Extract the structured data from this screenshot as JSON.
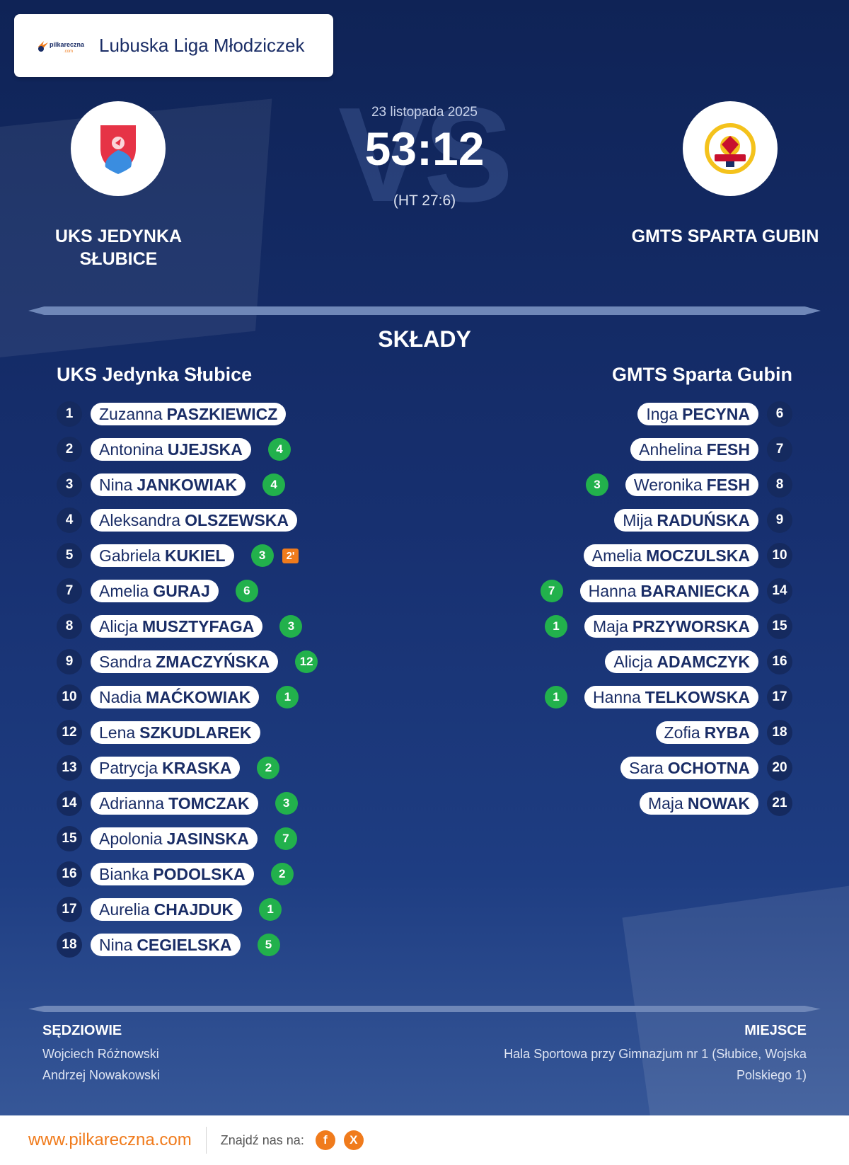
{
  "league": {
    "brand": "pilkareczna.com",
    "name": "Lubuska Liga Młodziczek"
  },
  "match": {
    "date": "23 listopada 2025",
    "score": "53:12",
    "halftime": "(HT 27:6)",
    "vs_watermark": "VS"
  },
  "home": {
    "name": "UKS JEDYNKA SŁUBICE",
    "roster_title": "UKS Jedynka Słubice",
    "players": [
      {
        "number": "1",
        "first": "Zuzanna",
        "last": "PASZKIEWICZ",
        "goals": null,
        "suspension": null
      },
      {
        "number": "2",
        "first": "Antonina",
        "last": "UJEJSKA",
        "goals": "4",
        "suspension": null
      },
      {
        "number": "3",
        "first": "Nina",
        "last": "JANKOWIAK",
        "goals": "4",
        "suspension": null
      },
      {
        "number": "4",
        "first": "Aleksandra",
        "last": "OLSZEWSKA",
        "goals": null,
        "suspension": null
      },
      {
        "number": "5",
        "first": "Gabriela",
        "last": "KUKIEL",
        "goals": "3",
        "suspension": "2'"
      },
      {
        "number": "7",
        "first": "Amelia",
        "last": "GURAJ",
        "goals": "6",
        "suspension": null
      },
      {
        "number": "8",
        "first": "Alicja",
        "last": "MUSZTYFAGA",
        "goals": "3",
        "suspension": null
      },
      {
        "number": "9",
        "first": "Sandra",
        "last": "ZMACZYŃSKA",
        "goals": "12",
        "suspension": null
      },
      {
        "number": "10",
        "first": "Nadia",
        "last": "MAĆKOWIAK",
        "goals": "1",
        "suspension": null
      },
      {
        "number": "12",
        "first": "Lena",
        "last": "SZKUDLAREK",
        "goals": null,
        "suspension": null
      },
      {
        "number": "13",
        "first": "Patrycja",
        "last": "KRASKA",
        "goals": "2",
        "suspension": null
      },
      {
        "number": "14",
        "first": "Adrianna",
        "last": "TOMCZAK",
        "goals": "3",
        "suspension": null
      },
      {
        "number": "15",
        "first": "Apolonia",
        "last": "JASINSKA",
        "goals": "7",
        "suspension": null
      },
      {
        "number": "16",
        "first": "Bianka",
        "last": "PODOLSKA",
        "goals": "2",
        "suspension": null
      },
      {
        "number": "17",
        "first": "Aurelia",
        "last": "CHAJDUK",
        "goals": "1",
        "suspension": null
      },
      {
        "number": "18",
        "first": "Nina",
        "last": "CEGIELSKA",
        "goals": "5",
        "suspension": null
      }
    ]
  },
  "away": {
    "name": "GMTS SPARTA GUBIN",
    "roster_title": "GMTS Sparta Gubin",
    "players": [
      {
        "number": "6",
        "first": "Inga",
        "last": "PECYNA",
        "goals": null
      },
      {
        "number": "7",
        "first": "Anhelina",
        "last": "FESH",
        "goals": null
      },
      {
        "number": "8",
        "first": "Weronika",
        "last": "FESH",
        "goals": "3"
      },
      {
        "number": "9",
        "first": "Mija",
        "last": "RADUŃSKA",
        "goals": null
      },
      {
        "number": "10",
        "first": "Amelia",
        "last": "MOCZULSKA",
        "goals": null
      },
      {
        "number": "14",
        "first": "Hanna",
        "last": "BARANIECKA",
        "goals": "7"
      },
      {
        "number": "15",
        "first": "Maja",
        "last": "PRZYWORSKA",
        "goals": "1"
      },
      {
        "number": "16",
        "first": "Alicja",
        "last": "ADAMCZYK",
        "goals": null
      },
      {
        "number": "17",
        "first": "Hanna",
        "last": "TELKOWSKA",
        "goals": "1"
      },
      {
        "number": "18",
        "first": "Zofia",
        "last": "RYBA",
        "goals": null
      },
      {
        "number": "20",
        "first": "Sara",
        "last": "OCHOTNA",
        "goals": null
      },
      {
        "number": "21",
        "first": "Maja",
        "last": "NOWAK",
        "goals": null
      }
    ]
  },
  "section_title": "SKŁADY",
  "referees": {
    "title": "SĘDZIOWIE",
    "names": [
      "Wojciech Różnowski",
      "Andrzej Nowakowski"
    ]
  },
  "venue": {
    "title": "MIEJSCE",
    "text": "Hala Sportowa przy Gimnazjum nr 1 (Słubice, Wojska Polskiego 1)"
  },
  "footer": {
    "site": "www.pilkareczna.com",
    "find_label": "Znajdź nas na:",
    "socials": [
      {
        "icon": "facebook-icon",
        "glyph": "f"
      },
      {
        "icon": "x-icon",
        "glyph": "X"
      }
    ]
  },
  "colors": {
    "accent": "#f07b1c",
    "goal_badge": "#22b14c",
    "navy": "#152a5f"
  }
}
